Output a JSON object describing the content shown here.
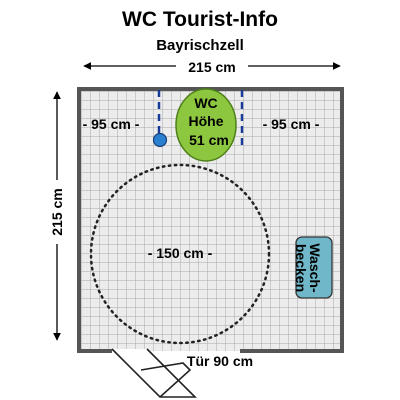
{
  "title": "WC Tourist-Info",
  "subtitle": "Bayrischzell",
  "room": {
    "width_label": "215 cm",
    "depth_label": "215 cm"
  },
  "toilet": {
    "line1": "WC",
    "line2": "Höhe",
    "line3": "51 cm",
    "color": "#8dc63f"
  },
  "clearance_left": "- 95 cm -",
  "clearance_right": "- 95 cm -",
  "turning_circle": "- 150 cm -",
  "sink": {
    "line1": "Wasch-",
    "line2": "becken",
    "color": "#6fb7c9"
  },
  "door": "Tür 90 cm",
  "colors": {
    "wall": "#555555",
    "floor": "#ececec",
    "tile_line": "#a8a8a8",
    "grab_bar": "#1a3a9a",
    "flush_button": "#2b7fd1"
  }
}
